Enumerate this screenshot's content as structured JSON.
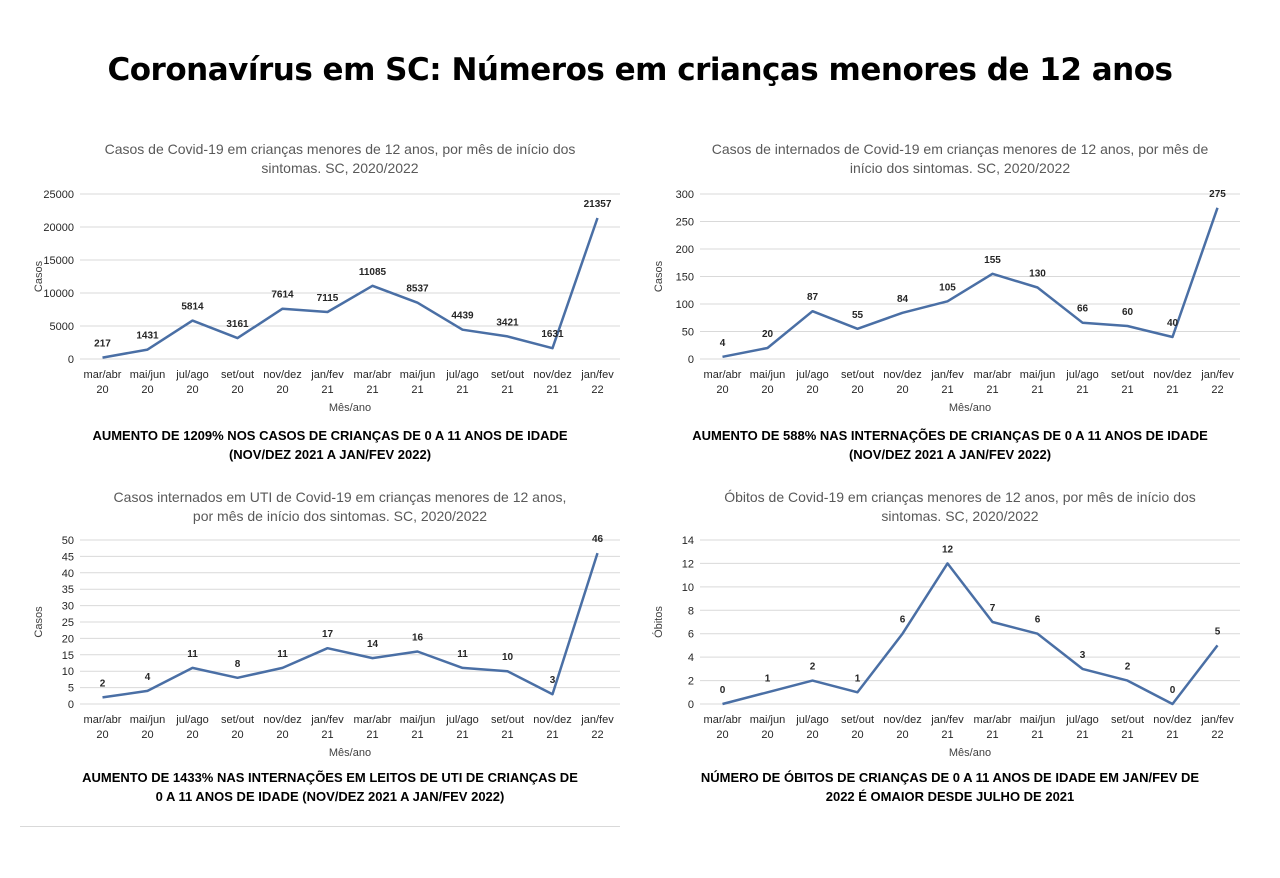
{
  "page_title": "Coronavírus em SC: Números em crianças menores de 12 anos",
  "chart_data": [
    {
      "type": "line",
      "title_line1": "Casos de Covid-19 em crianças menores de 12 anos, por mês de início dos",
      "title_line2": "sintomas. SC, 2020/2022",
      "ylabel": "Casos",
      "xlabel": "Mês/ano",
      "ylim": [
        0,
        25000
      ],
      "yticks": [
        "0",
        "5000",
        "10000",
        "15000",
        "20000",
        "25000"
      ],
      "categories": [
        [
          "mar/abr",
          "20"
        ],
        [
          "mai/jun",
          "20"
        ],
        [
          "jul/ago",
          "20"
        ],
        [
          "set/out",
          "20"
        ],
        [
          "nov/dez",
          "20"
        ],
        [
          "jan/fev",
          "21"
        ],
        [
          "mar/abr",
          "21"
        ],
        [
          "mai/jun",
          "21"
        ],
        [
          "jul/ago",
          "21"
        ],
        [
          "set/out",
          "21"
        ],
        [
          "nov/dez",
          "21"
        ],
        [
          "jan/fev",
          "22"
        ]
      ],
      "values": [
        217,
        1431,
        5814,
        3161,
        7614,
        7115,
        11085,
        8537,
        4439,
        3421,
        1631,
        21357
      ],
      "grid": true,
      "line_color": "#4a6fa5",
      "caption_line1": "AUMENTO DE 1209% NOS CASOS DE CRIANÇAS DE 0 A 11 ANOS DE IDADE",
      "caption_line2": "(NOV/DEZ 2021 A JAN/FEV 2022)"
    },
    {
      "type": "line",
      "title_line1": "Casos de internados de Covid-19 em crianças menores de 12 anos, por mês de",
      "title_line2": "início dos sintomas. SC, 2020/2022",
      "ylabel": "Casos",
      "xlabel": "Mês/ano",
      "ylim": [
        0,
        300
      ],
      "yticks": [
        "0",
        "50",
        "100",
        "150",
        "200",
        "250",
        "300"
      ],
      "categories": [
        [
          "mar/abr",
          "20"
        ],
        [
          "mai/jun",
          "20"
        ],
        [
          "jul/ago",
          "20"
        ],
        [
          "set/out",
          "20"
        ],
        [
          "nov/dez",
          "20"
        ],
        [
          "jan/fev",
          "21"
        ],
        [
          "mar/abr",
          "21"
        ],
        [
          "mai/jun",
          "21"
        ],
        [
          "jul/ago",
          "21"
        ],
        [
          "set/out",
          "21"
        ],
        [
          "nov/dez",
          "21"
        ],
        [
          "jan/fev",
          "22"
        ]
      ],
      "values": [
        4,
        20,
        87,
        55,
        84,
        105,
        155,
        130,
        66,
        60,
        40,
        275
      ],
      "grid": true,
      "line_color": "#4a6fa5",
      "caption_line1": "AUMENTO DE 588% NAS INTERNAÇÕES DE CRIANÇAS DE 0 A 11 ANOS DE IDADE",
      "caption_line2": "(NOV/DEZ 2021 A JAN/FEV 2022)"
    },
    {
      "type": "line",
      "title_line1": "Casos internados em UTI de Covid-19 em crianças menores de 12 anos,",
      "title_line2": "por mês de início dos sintomas. SC, 2020/2022",
      "ylabel": "Casos",
      "xlabel": "Mês/ano",
      "ylim": [
        0,
        50
      ],
      "yticks": [
        "0",
        "5",
        "10",
        "15",
        "20",
        "25",
        "30",
        "35",
        "40",
        "45",
        "50"
      ],
      "categories": [
        [
          "mar/abr",
          "20"
        ],
        [
          "mai/jun",
          "20"
        ],
        [
          "jul/ago",
          "20"
        ],
        [
          "set/out",
          "20"
        ],
        [
          "nov/dez",
          "20"
        ],
        [
          "jan/fev",
          "21"
        ],
        [
          "mar/abr",
          "21"
        ],
        [
          "mai/jun",
          "21"
        ],
        [
          "jul/ago",
          "21"
        ],
        [
          "set/out",
          "21"
        ],
        [
          "nov/dez",
          "21"
        ],
        [
          "jan/fev",
          "22"
        ]
      ],
      "values": [
        2,
        4,
        11,
        8,
        11,
        17,
        14,
        16,
        11,
        10,
        3,
        46
      ],
      "grid": true,
      "line_color": "#4a6fa5",
      "caption_line1": "AUMENTO DE 1433% NAS INTERNAÇÕES EM LEITOS DE UTI DE CRIANÇAS DE",
      "caption_line2": "0 A 11 ANOS DE IDADE (NOV/DEZ 2021 A JAN/FEV 2022)"
    },
    {
      "type": "line",
      "title_line1": "Óbitos de Covid-19 em crianças menores de 12 anos, por mês de início dos",
      "title_line2": "sintomas. SC, 2020/2022",
      "ylabel": "Óbitos",
      "xlabel": "Mês/ano",
      "ylim": [
        0,
        14
      ],
      "yticks": [
        "0",
        "2",
        "4",
        "6",
        "8",
        "10",
        "12",
        "14"
      ],
      "categories": [
        [
          "mar/abr",
          "20"
        ],
        [
          "mai/jun",
          "20"
        ],
        [
          "jul/ago",
          "20"
        ],
        [
          "set/out",
          "20"
        ],
        [
          "nov/dez",
          "20"
        ],
        [
          "jan/fev",
          "21"
        ],
        [
          "mar/abr",
          "21"
        ],
        [
          "mai/jun",
          "21"
        ],
        [
          "jul/ago",
          "21"
        ],
        [
          "set/out",
          "21"
        ],
        [
          "nov/dez",
          "21"
        ],
        [
          "jan/fev",
          "22"
        ]
      ],
      "values": [
        0,
        1,
        2,
        1,
        6,
        12,
        7,
        6,
        3,
        2,
        0,
        5
      ],
      "grid": true,
      "line_color": "#4a6fa5",
      "caption_line1": "NÚMERO DE ÓBITOS DE CRIANÇAS DE 0 A 11 ANOS DE IDADE EM JAN/FEV DE",
      "caption_line2": "2022 É OMAIOR DESDE JULHO DE 2021"
    }
  ]
}
